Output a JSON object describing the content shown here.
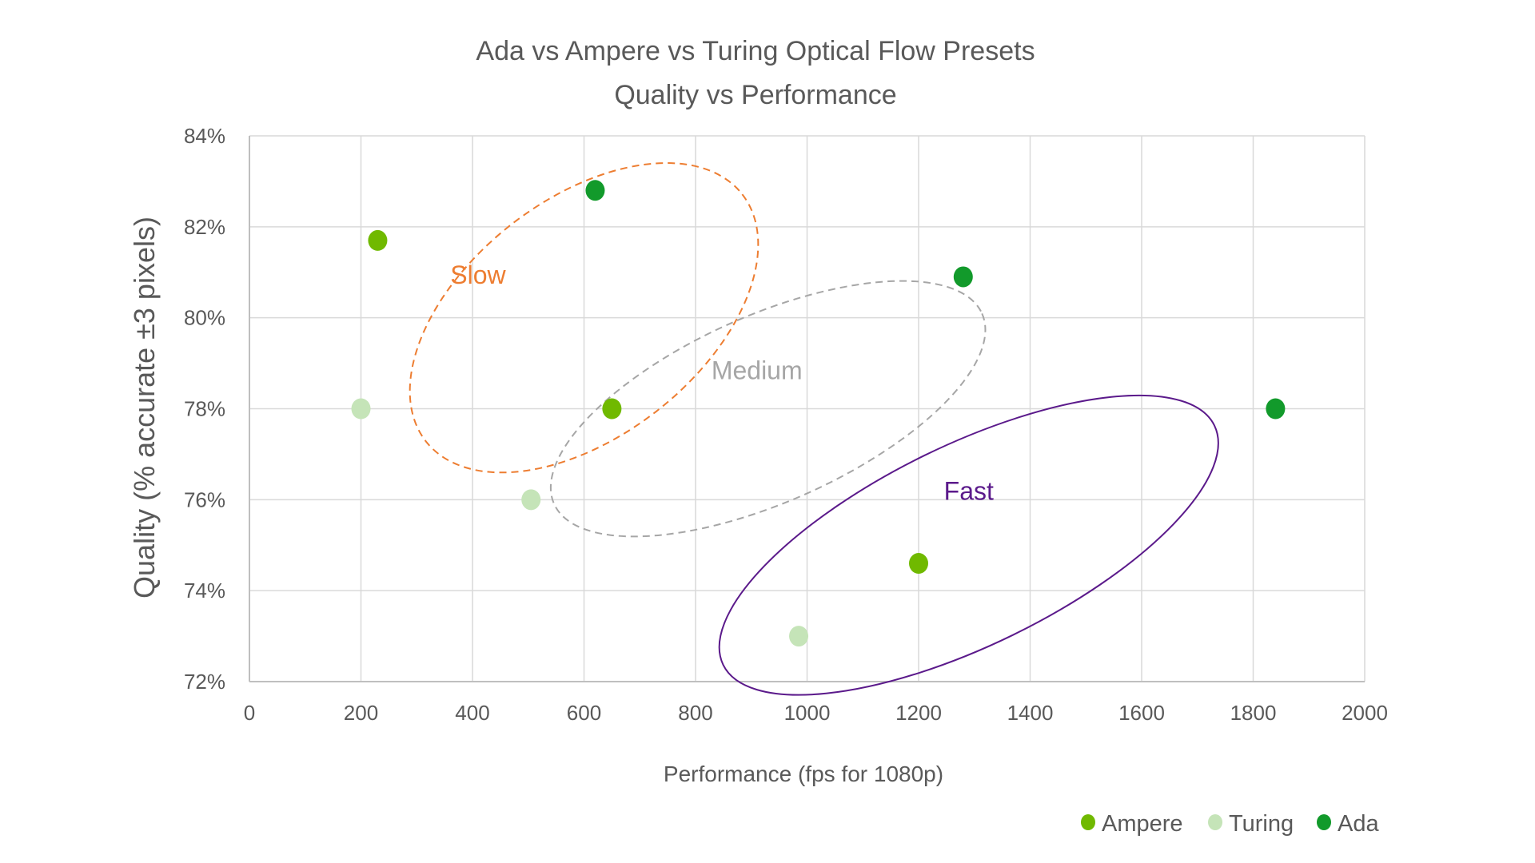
{
  "chart_data": {
    "type": "scatter",
    "title": "Ada vs Ampere vs Turing Optical Flow Presets",
    "subtitle": "Quality vs Performance",
    "xlabel": "Performance (fps for 1080p)",
    "ylabel": "Quality (% accurate ±3 pixels)",
    "xlim": [
      0,
      2000
    ],
    "ylim": [
      72,
      84
    ],
    "x_ticks": [
      "0",
      "200",
      "400",
      "600",
      "800",
      "1000",
      "1200",
      "1400",
      "1600",
      "1800",
      "2000"
    ],
    "y_ticks": [
      "72%",
      "74%",
      "76%",
      "78%",
      "80%",
      "82%",
      "84%"
    ],
    "grid": true,
    "legend_position": "bottom-right",
    "series": [
      {
        "name": "Ampere",
        "color": "#70b900",
        "points": [
          {
            "x": 230,
            "y": 81.7
          },
          {
            "x": 650,
            "y": 78.0
          },
          {
            "x": 1200,
            "y": 74.6
          }
        ]
      },
      {
        "name": "Turing",
        "color": "#c5e4b8",
        "points": [
          {
            "x": 200,
            "y": 78.0
          },
          {
            "x": 505,
            "y": 76.0
          },
          {
            "x": 985,
            "y": 73.0
          }
        ]
      },
      {
        "name": "Ada",
        "color": "#129a2b",
        "points": [
          {
            "x": 620,
            "y": 82.8
          },
          {
            "x": 1280,
            "y": 80.9
          },
          {
            "x": 1840,
            "y": 78.0
          }
        ]
      }
    ],
    "annotations": [
      {
        "text": "Slow",
        "color": "#ed7d31",
        "x": 410,
        "y": 80.75,
        "style": "dashed",
        "ellipse": {
          "cx": 600,
          "cy": 80.0,
          "rx": 360,
          "ry": 2.6,
          "rotate": -38
        }
      },
      {
        "text": "Medium",
        "color": "#a6a6a6",
        "x": 910,
        "y": 78.65,
        "style": "dashed",
        "ellipse": {
          "cx": 930,
          "cy": 78.0,
          "rx": 420,
          "ry": 2.05,
          "rotate": -24
        }
      },
      {
        "text": "Fast",
        "color": "#5b1a8b",
        "x": 1290,
        "y": 76.0,
        "style": "solid",
        "ellipse": {
          "cx": 1290,
          "cy": 75.0,
          "rx": 490,
          "ry": 2.2,
          "rotate": -26
        }
      }
    ]
  }
}
